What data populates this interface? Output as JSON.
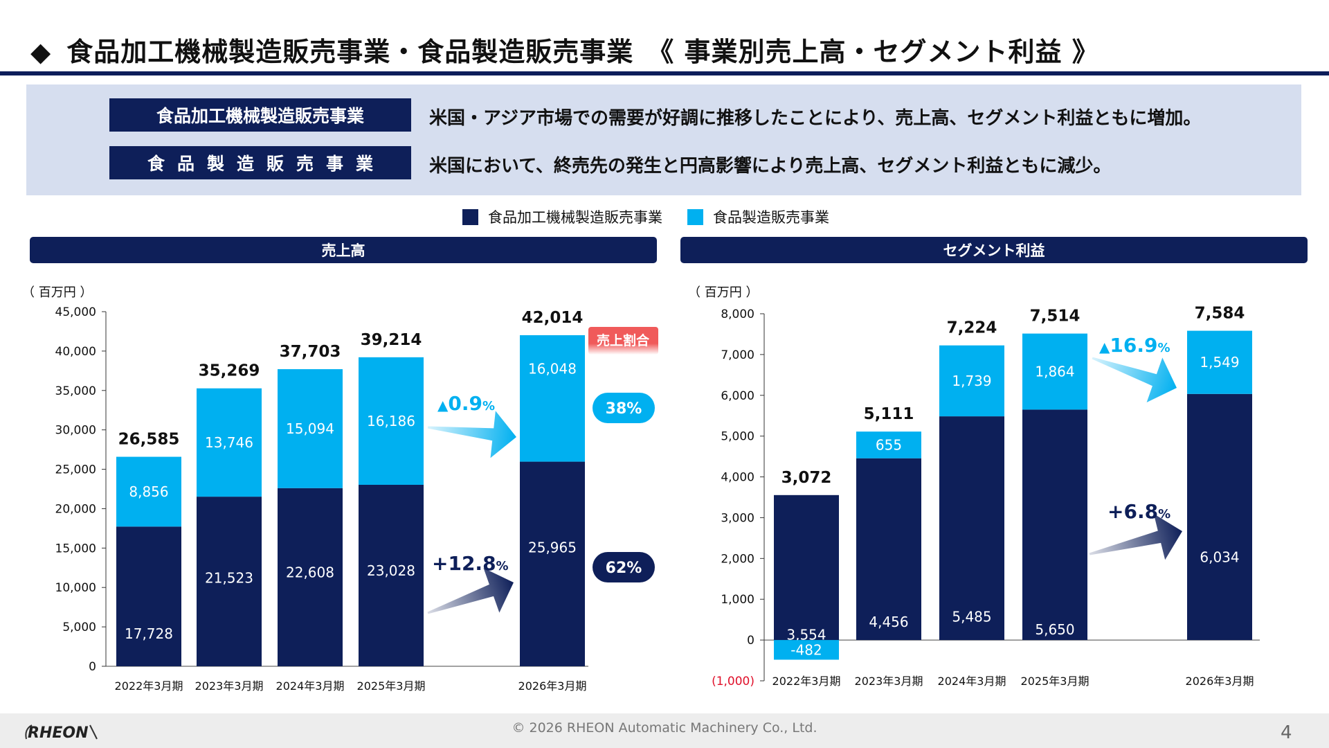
{
  "header": {
    "bullet": "◆",
    "title": "食品加工機械製造販売事業・食品製造販売事業　《 事業別売上高・セグメント利益 》"
  },
  "summary": {
    "rows": [
      {
        "segment": "食品加工機械製造販売事業",
        "text": "米国・アジア市場での需要が好調に推移したことにより、売上高、セグメント利益ともに増加。"
      },
      {
        "segment": "食品製造販売事業",
        "text": "米国において、終売先の発生と円高影響により売上高、セグメント利益ともに減少。"
      }
    ]
  },
  "legend": [
    {
      "label": "食品加工機械製造販売事業",
      "color": "#0e1f59"
    },
    {
      "label": "食品製造販売事業",
      "color": "#00b0f0"
    }
  ],
  "colors": {
    "machinery": "#0e1f59",
    "food": "#00b0f0",
    "navy": "#0e1f59",
    "red": "#f05a5a"
  },
  "chart_data": [
    {
      "type": "bar",
      "stacked": true,
      "title": "売上高",
      "unit_label": "（ 百万円 ）",
      "categories": [
        "2022年3月期",
        "2023年3月期",
        "2024年3月期",
        "2025年3月期",
        "2026年3月期"
      ],
      "series": [
        {
          "name": "食品加工機械製造販売事業",
          "values": [
            17728,
            21523,
            22608,
            23028,
            25965
          ]
        },
        {
          "name": "食品製造販売事業",
          "values": [
            8856,
            13746,
            15094,
            16186,
            16048
          ]
        }
      ],
      "totals": [
        26585,
        35269,
        37703,
        39214,
        42014
      ],
      "value_labels": {
        "machinery": [
          "17,728",
          "21,523",
          "22,608",
          "23,028",
          "25,965"
        ],
        "food": [
          "8,856",
          "13,746",
          "15,094",
          "16,186",
          "16,048"
        ],
        "totals": [
          "26,585",
          "35,269",
          "37,703",
          "39,214",
          "42,014"
        ]
      },
      "ylim": [
        0,
        45000
      ],
      "yticks": [
        0,
        5000,
        10000,
        15000,
        20000,
        25000,
        30000,
        35000,
        40000,
        45000
      ],
      "ytick_labels": [
        "0",
        "5,000",
        "10,000",
        "15,000",
        "20,000",
        "25,000",
        "30,000",
        "35,000",
        "40,000",
        "45,000"
      ],
      "annotations": {
        "food_change": {
          "arrow": "▲",
          "value": "0.9",
          "unit": "%"
        },
        "machinery_change": {
          "value": "+12.8",
          "unit": "%"
        },
        "share_header": "売上割合",
        "share_food": "38%",
        "share_machinery": "62%"
      }
    },
    {
      "type": "bar",
      "stacked": true,
      "title": "セグメント利益",
      "unit_label": "（ 百万円 ）",
      "categories": [
        "2022年3月期",
        "2023年3月期",
        "2024年3月期",
        "2025年3月期",
        "2026年3月期"
      ],
      "series": [
        {
          "name": "食品加工機械製造販売事業",
          "values": [
            3554,
            4456,
            5485,
            5650,
            6034
          ]
        },
        {
          "name": "食品製造販売事業",
          "values": [
            -482,
            655,
            1739,
            1864,
            1549
          ]
        }
      ],
      "totals": [
        3072,
        5111,
        7224,
        7514,
        7584
      ],
      "value_labels": {
        "machinery": [
          "3,554",
          "4,456",
          "5,485",
          "5,650",
          "6,034"
        ],
        "food": [
          "-482",
          "655",
          "1,739",
          "1,864",
          "1,549"
        ],
        "totals": [
          "3,072",
          "5,111",
          "7,224",
          "7,514",
          "7,584"
        ]
      },
      "ylim": [
        -1000,
        8000
      ],
      "yticks": [
        -1000,
        0,
        1000,
        2000,
        3000,
        4000,
        5000,
        6000,
        7000,
        8000
      ],
      "ytick_labels": [
        "(1,000)",
        "0",
        "1,000",
        "2,000",
        "3,000",
        "4,000",
        "5,000",
        "6,000",
        "7,000",
        "8,000"
      ],
      "negative_tick_color": "#e0102a",
      "annotations": {
        "food_change": {
          "arrow": "▲",
          "value": "16.9",
          "unit": "%"
        },
        "machinery_change": {
          "value": "+6.8",
          "unit": "%"
        }
      }
    }
  ],
  "footer": {
    "copyright": "© 2026 RHEON Automatic Machinery Co., Ltd.",
    "page_number": "4",
    "logo_text": "RHEON"
  }
}
